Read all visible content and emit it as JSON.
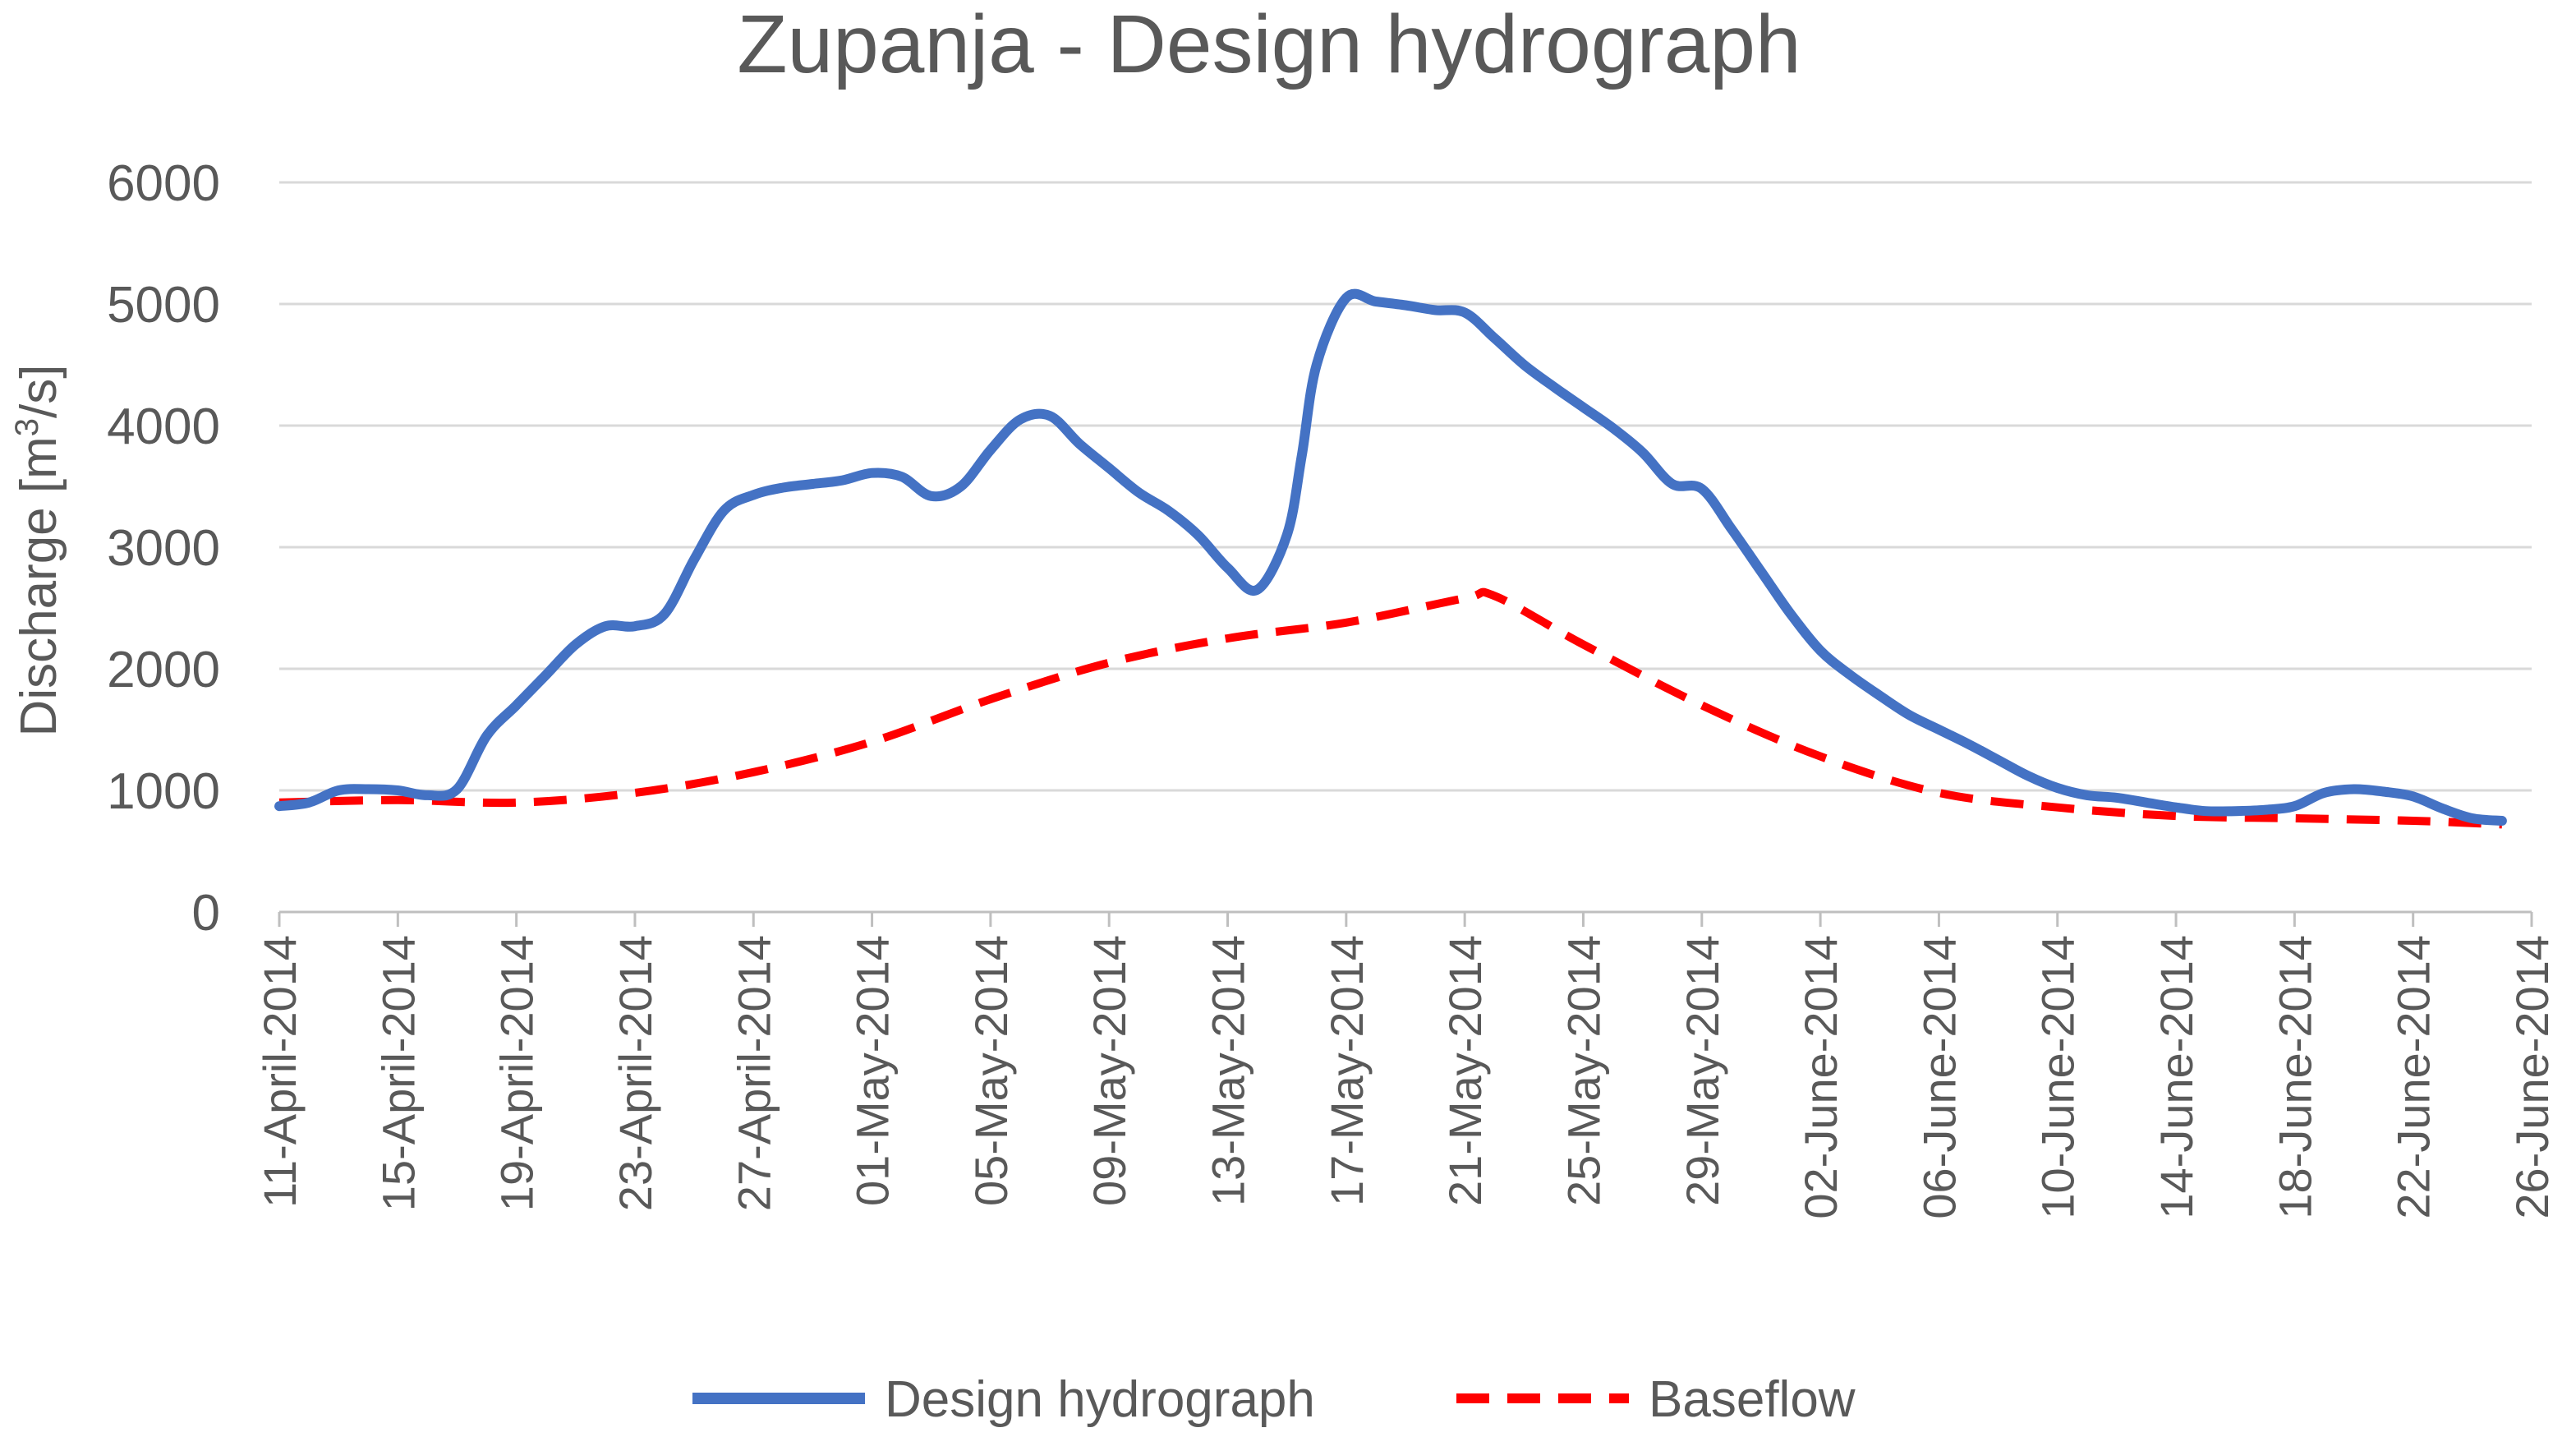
{
  "chart_data": {
    "type": "line",
    "title": "Zupanja - Design hydrograph",
    "xlabel": "",
    "ylabel": "Discharge [m",
    "ylabel_sup": "3",
    "ylabel_tail": "/s]",
    "ylim": [
      0,
      6000
    ],
    "yticks": [
      0,
      1000,
      2000,
      3000,
      4000,
      5000,
      6000
    ],
    "ytick_labels": [
      "0",
      "1000",
      "2000",
      "3000",
      "4000",
      "5000",
      "6000"
    ],
    "x_start": "2014-04-11",
    "x_end": "2014-06-26",
    "xticks": [
      "2014-04-11",
      "2014-04-15",
      "2014-04-19",
      "2014-04-23",
      "2014-04-27",
      "2014-05-01",
      "2014-05-05",
      "2014-05-09",
      "2014-05-13",
      "2014-05-17",
      "2014-05-21",
      "2014-05-25",
      "2014-05-29",
      "2014-06-02",
      "2014-06-06",
      "2014-06-10",
      "2014-06-14",
      "2014-06-18",
      "2014-06-22",
      "2014-06-26"
    ],
    "xtick_labels": [
      "11-April-2014",
      "15-April-2014",
      "19-April-2014",
      "23-April-2014",
      "27-April-2014",
      "01-May-2014",
      "05-May-2014",
      "09-May-2014",
      "13-May-2014",
      "17-May-2014",
      "21-May-2014",
      "25-May-2014",
      "29-May-2014",
      "02-June-2014",
      "06-June-2014",
      "10-June-2014",
      "14-June-2014",
      "18-June-2014",
      "22-June-2014",
      "26-June-2014"
    ],
    "grid": true,
    "legend": "bottom",
    "series": [
      {
        "name": "Design hydrograph",
        "color": "#4472C4",
        "style": "solid",
        "points": [
          [
            "2014-04-11",
            870
          ],
          [
            "2014-04-12",
            900
          ],
          [
            "2014-04-13",
            1000
          ],
          [
            "2014-04-14",
            1010
          ],
          [
            "2014-04-15",
            1000
          ],
          [
            "2014-04-16",
            960
          ],
          [
            "2014-04-17",
            1010
          ],
          [
            "2014-04-18",
            1450
          ],
          [
            "2014-04-19",
            1700
          ],
          [
            "2014-04-20",
            1950
          ],
          [
            "2014-04-21",
            2200
          ],
          [
            "2014-04-22",
            2350
          ],
          [
            "2014-04-23",
            2350
          ],
          [
            "2014-04-24",
            2450
          ],
          [
            "2014-04-25",
            2900
          ],
          [
            "2014-04-26",
            3300
          ],
          [
            "2014-04-27",
            3430
          ],
          [
            "2014-04-28",
            3490
          ],
          [
            "2014-04-29",
            3520
          ],
          [
            "2014-04-30",
            3550
          ],
          [
            "2014-05-01",
            3610
          ],
          [
            "2014-05-02",
            3580
          ],
          [
            "2014-05-03",
            3420
          ],
          [
            "2014-05-04",
            3500
          ],
          [
            "2014-05-05",
            3800
          ],
          [
            "2014-05-06",
            4050
          ],
          [
            "2014-05-07",
            4080
          ],
          [
            "2014-05-08",
            3850
          ],
          [
            "2014-05-09",
            3650
          ],
          [
            "2014-05-10",
            3450
          ],
          [
            "2014-05-11",
            3300
          ],
          [
            "2014-05-12",
            3100
          ],
          [
            "2014-05-13",
            2830
          ],
          [
            "2014-05-14",
            2650
          ],
          [
            "2014-05-15",
            3100
          ],
          [
            "2014-05-15.5",
            3750
          ],
          [
            "2014-05-16",
            4500
          ],
          [
            "2014-05-17",
            5050
          ],
          [
            "2014-05-18",
            5020
          ],
          [
            "2014-05-19",
            4990
          ],
          [
            "2014-05-20",
            4950
          ],
          [
            "2014-05-21",
            4930
          ],
          [
            "2014-05-22",
            4720
          ],
          [
            "2014-05-23",
            4500
          ],
          [
            "2014-05-24",
            4320
          ],
          [
            "2014-05-25",
            4150
          ],
          [
            "2014-05-26",
            3980
          ],
          [
            "2014-05-27",
            3780
          ],
          [
            "2014-05-28",
            3520
          ],
          [
            "2014-05-29",
            3480
          ],
          [
            "2014-05-30",
            3150
          ],
          [
            "2014-05-31",
            2800
          ],
          [
            "2014-06-01",
            2450
          ],
          [
            "2014-06-02",
            2150
          ],
          [
            "2014-06-03",
            1950
          ],
          [
            "2014-06-04",
            1780
          ],
          [
            "2014-06-05",
            1620
          ],
          [
            "2014-06-06",
            1500
          ],
          [
            "2014-06-07",
            1380
          ],
          [
            "2014-06-08",
            1250
          ],
          [
            "2014-06-09",
            1120
          ],
          [
            "2014-06-10",
            1020
          ],
          [
            "2014-06-11",
            960
          ],
          [
            "2014-06-12",
            940
          ],
          [
            "2014-06-13",
            900
          ],
          [
            "2014-06-14",
            860
          ],
          [
            "2014-06-15",
            830
          ],
          [
            "2014-06-16",
            830
          ],
          [
            "2014-06-17",
            840
          ],
          [
            "2014-06-18",
            870
          ],
          [
            "2014-06-19",
            980
          ],
          [
            "2014-06-20",
            1010
          ],
          [
            "2014-06-21",
            990
          ],
          [
            "2014-06-22",
            950
          ],
          [
            "2014-06-23",
            850
          ],
          [
            "2014-06-24",
            770
          ],
          [
            "2014-06-25",
            750
          ]
        ]
      },
      {
        "name": "Baseflow",
        "color": "#FF0000",
        "style": "dashed",
        "points": [
          [
            "2014-04-11",
            900
          ],
          [
            "2014-04-15",
            920
          ],
          [
            "2014-04-19",
            900
          ],
          [
            "2014-04-23",
            980
          ],
          [
            "2014-04-27",
            1150
          ],
          [
            "2014-05-01",
            1400
          ],
          [
            "2014-05-05",
            1750
          ],
          [
            "2014-05-09",
            2050
          ],
          [
            "2014-05-13",
            2250
          ],
          [
            "2014-05-17",
            2380
          ],
          [
            "2014-05-21",
            2580
          ],
          [
            "2014-05-22",
            2600
          ],
          [
            "2014-05-25",
            2200
          ],
          [
            "2014-05-29",
            1700
          ],
          [
            "2014-06-02",
            1280
          ],
          [
            "2014-06-06",
            980
          ],
          [
            "2014-06-10",
            860
          ],
          [
            "2014-06-14",
            790
          ],
          [
            "2014-06-18",
            770
          ],
          [
            "2014-06-22",
            750
          ],
          [
            "2014-06-25",
            720
          ]
        ]
      }
    ]
  }
}
